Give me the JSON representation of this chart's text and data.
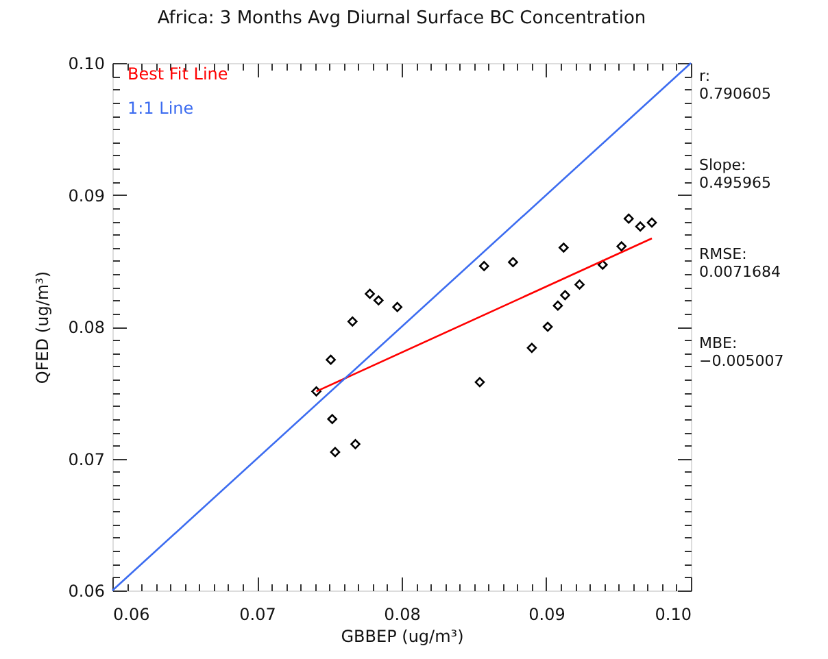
{
  "chart_data": {
    "type": "scatter",
    "title": "Africa: 3 Months Avg Diurnal Surface BC Concentration",
    "xlabel": "GBBEP (ug/m³)",
    "ylabel": "QFED (ug/m³)",
    "xlim": [
      0.06,
      0.1
    ],
    "ylim": [
      0.06,
      0.1
    ],
    "xticks": [
      0.06,
      {
        "value": 0.061,
        "label": null
      },
      {
        "value": 0.062,
        "label": null
      },
      {
        "value": 0.063,
        "label": null
      },
      {
        "value": 0.064,
        "label": null
      },
      {
        "value": 0.065,
        "label": null
      },
      {
        "value": 0.066,
        "label": null
      },
      {
        "value": 0.067,
        "label": null
      },
      {
        "value": 0.068,
        "label": null
      },
      {
        "value": 0.069,
        "label": null
      },
      0.07,
      {
        "value": 0.071,
        "label": null
      },
      {
        "value": 0.072,
        "label": null
      },
      {
        "value": 0.073,
        "label": null
      },
      {
        "value": 0.074,
        "label": null
      },
      {
        "value": 0.075,
        "label": null
      },
      {
        "value": 0.076,
        "label": null
      },
      {
        "value": 0.077,
        "label": null
      },
      {
        "value": 0.078,
        "label": null
      },
      {
        "value": 0.079,
        "label": null
      },
      0.08,
      {
        "value": 0.081,
        "label": null
      },
      {
        "value": 0.082,
        "label": null
      },
      {
        "value": 0.083,
        "label": null
      },
      {
        "value": 0.084,
        "label": null
      },
      {
        "value": 0.085,
        "label": null
      },
      {
        "value": 0.086,
        "label": null
      },
      {
        "value": 0.087,
        "label": null
      },
      {
        "value": 0.088,
        "label": null
      },
      {
        "value": 0.089,
        "label": null
      },
      0.09,
      {
        "value": 0.091,
        "label": null
      },
      {
        "value": 0.092,
        "label": null
      },
      {
        "value": 0.093,
        "label": null
      },
      {
        "value": 0.094,
        "label": null
      },
      {
        "value": 0.095,
        "label": null
      },
      {
        "value": 0.096,
        "label": null
      },
      {
        "value": 0.097,
        "label": null
      },
      {
        "value": 0.098,
        "label": null
      },
      {
        "value": 0.099,
        "label": null
      },
      {
        "value": 0.1,
        "label": "0.10"
      }
    ],
    "yticks": [
      0.06,
      {
        "value": 0.061,
        "label": null
      },
      {
        "value": 0.062,
        "label": null
      },
      {
        "value": 0.063,
        "label": null
      },
      {
        "value": 0.064,
        "label": null
      },
      {
        "value": 0.065,
        "label": null
      },
      {
        "value": 0.066,
        "label": null
      },
      {
        "value": 0.067,
        "label": null
      },
      {
        "value": 0.068,
        "label": null
      },
      {
        "value": 0.069,
        "label": null
      },
      0.07,
      {
        "value": 0.071,
        "label": null
      },
      {
        "value": 0.072,
        "label": null
      },
      {
        "value": 0.073,
        "label": null
      },
      {
        "value": 0.074,
        "label": null
      },
      {
        "value": 0.075,
        "label": null
      },
      {
        "value": 0.076,
        "label": null
      },
      {
        "value": 0.077,
        "label": null
      },
      {
        "value": 0.078,
        "label": null
      },
      {
        "value": 0.079,
        "label": null
      },
      0.08,
      {
        "value": 0.081,
        "label": null
      },
      {
        "value": 0.082,
        "label": null
      },
      {
        "value": 0.083,
        "label": null
      },
      {
        "value": 0.084,
        "label": null
      },
      {
        "value": 0.085,
        "label": null
      },
      {
        "value": 0.086,
        "label": null
      },
      {
        "value": 0.087,
        "label": null
      },
      {
        "value": 0.088,
        "label": null
      },
      {
        "value": 0.089,
        "label": null
      },
      0.09,
      {
        "value": 0.091,
        "label": null
      },
      {
        "value": 0.092,
        "label": null
      },
      {
        "value": 0.093,
        "label": null
      },
      {
        "value": 0.094,
        "label": null
      },
      {
        "value": 0.095,
        "label": null
      },
      {
        "value": 0.096,
        "label": null
      },
      {
        "value": 0.097,
        "label": null
      },
      {
        "value": 0.098,
        "label": null
      },
      {
        "value": 0.099,
        "label": null
      },
      {
        "value": 0.1,
        "label": "0.10"
      }
    ],
    "legend": "top left",
    "series": [
      {
        "color": "#000000",
        "marker": "diamond",
        "x": [
          0.0778,
          0.0784,
          0.0797,
          0.0766,
          0.0751,
          0.0741,
          0.0752,
          0.0768,
          0.0754,
          0.0957,
          0.0965,
          0.0973,
          0.0952,
          0.0912,
          0.0857,
          0.0877,
          0.0939,
          0.0923,
          0.0913,
          0.0908,
          0.0901,
          0.089,
          0.0854
        ],
        "values": [
          0.0825,
          0.082,
          0.0815,
          0.0804,
          0.0775,
          0.0751,
          0.073,
          0.0711,
          0.0705,
          0.0882,
          0.0876,
          0.0879,
          0.0861,
          0.086,
          0.0846,
          0.0849,
          0.0847,
          0.0832,
          0.0824,
          0.0816,
          0.08,
          0.0784,
          0.0758
        ]
      },
      {
        "type": "line",
        "name": "Best Fit Line",
        "color": "#ff0000",
        "x": [
          0.0741,
          0.0973
        ],
        "values": [
          0.0751,
          0.0867
        ]
      },
      {
        "type": "line",
        "name": "1:1 Line",
        "color": "#3c6cf0",
        "x": [
          0.06,
          0.1
        ],
        "values": [
          0.06,
          0.1
        ]
      }
    ],
    "annotations": [
      "r:",
      "0.790605",
      "Slope:",
      "0.495965",
      "RMSE:",
      "0.0071684",
      "MBE:",
      "−0.005007"
    ]
  }
}
